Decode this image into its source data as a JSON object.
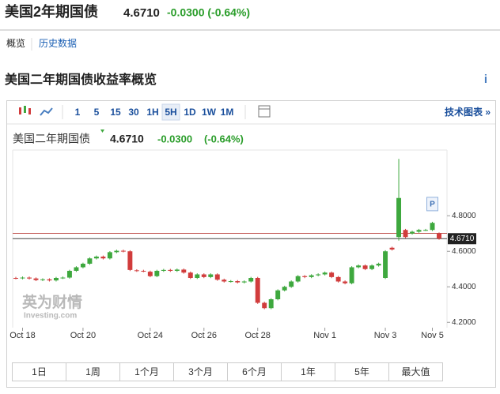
{
  "header": {
    "title": "美国2年期国债",
    "price": "4.6710",
    "change": "-0.0300 (-0.64%)"
  },
  "tabs": [
    "概览",
    "历史数据"
  ],
  "section_title": "美国二年期国债收益率概览",
  "info_icon": "i",
  "toolbar": {
    "intervals": [
      "1",
      "5",
      "15",
      "30",
      "1H",
      "5H",
      "1D",
      "1W",
      "1M"
    ],
    "active": "5H",
    "link": "技术图表 »"
  },
  "watermark": {
    "brand": "英为财情",
    "site": "Investing.com"
  },
  "range_buttons": [
    "1日",
    "1周",
    "1个月",
    "3个月",
    "6个月",
    "1年",
    "5年",
    "最大值"
  ],
  "chart_data": {
    "type": "candlestick",
    "legend": {
      "name": "美国二年期国债",
      "price": "4.6710",
      "change": "-0.0300",
      "change_pct": "(-0.64%)"
    },
    "categories": [
      null,
      "Oct 18",
      null,
      null,
      null,
      null,
      null,
      null,
      null,
      null,
      "Oct 20",
      null,
      null,
      null,
      null,
      null,
      null,
      null,
      null,
      null,
      "Oct 24",
      null,
      null,
      null,
      null,
      null,
      null,
      null,
      "Oct 26",
      null,
      null,
      null,
      null,
      null,
      null,
      null,
      "Oct 28",
      null,
      null,
      null,
      null,
      null,
      null,
      null,
      null,
      null,
      "Nov 1",
      null,
      null,
      null,
      null,
      null,
      null,
      null,
      null,
      "Nov 3",
      null,
      null,
      null,
      null,
      null,
      null,
      "Nov 5",
      null
    ],
    "open": [
      4.45,
      4.448,
      4.452,
      4.447,
      4.438,
      4.442,
      4.436,
      4.45,
      4.452,
      4.49,
      4.51,
      4.53,
      4.56,
      4.57,
      4.56,
      4.595,
      4.603,
      4.6,
      4.493,
      4.49,
      4.485,
      4.46,
      4.49,
      4.495,
      4.49,
      4.497,
      4.48,
      4.45,
      4.47,
      4.455,
      4.47,
      4.44,
      4.43,
      4.432,
      4.425,
      4.43,
      4.45,
      4.31,
      4.28,
      4.33,
      4.38,
      4.4,
      4.43,
      4.46,
      4.455,
      4.465,
      4.47,
      4.48,
      4.455,
      4.43,
      4.42,
      4.51,
      4.52,
      4.5,
      4.52,
      4.45,
      4.62,
      4.68,
      4.72,
      4.7,
      4.71,
      4.72,
      4.72,
      4.7
    ],
    "high": [
      4.456,
      4.458,
      4.458,
      4.453,
      4.448,
      4.448,
      4.456,
      4.458,
      4.496,
      4.516,
      4.536,
      4.566,
      4.576,
      4.576,
      4.601,
      4.609,
      4.609,
      4.606,
      4.499,
      4.496,
      4.491,
      4.496,
      4.501,
      4.501,
      4.503,
      4.503,
      4.486,
      4.476,
      4.476,
      4.476,
      4.476,
      4.446,
      4.438,
      4.438,
      4.436,
      4.456,
      4.456,
      4.316,
      4.336,
      4.386,
      4.406,
      4.436,
      4.466,
      4.466,
      4.471,
      4.476,
      4.486,
      4.486,
      4.461,
      4.436,
      4.516,
      4.526,
      4.526,
      4.526,
      4.536,
      4.606,
      4.626,
      5.12,
      4.726,
      4.716,
      4.726,
      4.726,
      4.766,
      4.706
    ],
    "low": [
      4.442,
      4.442,
      4.441,
      4.432,
      4.432,
      4.43,
      4.43,
      4.444,
      4.446,
      4.484,
      4.504,
      4.524,
      4.554,
      4.554,
      4.554,
      4.589,
      4.594,
      4.489,
      4.484,
      4.482,
      4.454,
      4.454,
      4.484,
      4.484,
      4.484,
      4.474,
      4.444,
      4.444,
      4.449,
      4.449,
      4.434,
      4.424,
      4.424,
      4.419,
      4.419,
      4.424,
      4.304,
      4.274,
      4.274,
      4.324,
      4.374,
      4.394,
      4.424,
      4.449,
      4.449,
      4.459,
      4.464,
      4.449,
      4.424,
      4.414,
      4.414,
      4.504,
      4.494,
      4.494,
      4.514,
      4.444,
      4.604,
      4.66,
      4.674,
      4.694,
      4.704,
      4.714,
      4.714,
      4.665
    ],
    "close": [
      4.448,
      4.452,
      4.447,
      4.438,
      4.442,
      4.436,
      4.45,
      4.452,
      4.49,
      4.51,
      4.53,
      4.56,
      4.57,
      4.56,
      4.595,
      4.603,
      4.6,
      4.495,
      4.49,
      4.488,
      4.46,
      4.49,
      4.495,
      4.49,
      4.497,
      4.48,
      4.45,
      4.47,
      4.455,
      4.47,
      4.44,
      4.43,
      4.432,
      4.425,
      4.43,
      4.45,
      4.31,
      4.28,
      4.33,
      4.38,
      4.4,
      4.43,
      4.46,
      4.455,
      4.465,
      4.47,
      4.48,
      4.455,
      4.43,
      4.42,
      4.51,
      4.52,
      4.5,
      4.52,
      4.53,
      4.6,
      4.61,
      4.9,
      4.68,
      4.71,
      4.72,
      4.72,
      4.76,
      4.671
    ],
    "up_color": "#3ea83e",
    "down_color": "#d13c3c",
    "ylim": [
      4.17,
      5.17
    ],
    "yticks": [
      {
        "value": 4.2,
        "label": "4.2000"
      },
      {
        "value": 4.4,
        "label": "4.4000"
      },
      {
        "value": 4.6,
        "label": "4.6000"
      },
      {
        "value": 4.8,
        "label": "4.8000"
      }
    ],
    "previous_close": 4.701,
    "last_price": {
      "value": 4.671,
      "label": "4.6710"
    },
    "marker": "P"
  }
}
